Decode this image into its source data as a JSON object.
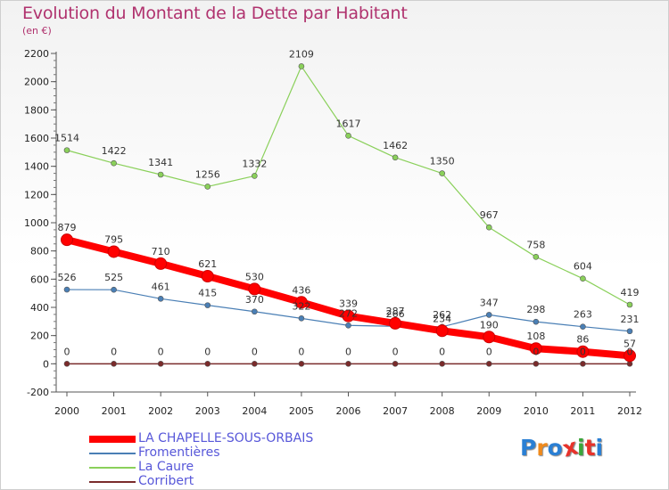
{
  "title": "Evolution du Montant de la Dette par Habitant",
  "subtitle": "(en €)",
  "logo": {
    "text": "Proxiti",
    "letter_colors": [
      "#2a7fd4",
      "#f08a1c",
      "#2a7fd4",
      "#e8322a",
      "#3aa63a",
      "#e8322a",
      "#2a7fd4"
    ]
  },
  "chart_data": {
    "type": "line",
    "x": [
      2000,
      2001,
      2002,
      2003,
      2004,
      2005,
      2006,
      2007,
      2008,
      2009,
      2010,
      2011,
      2012
    ],
    "ylim": [
      -200,
      2200
    ],
    "yticks": [
      -200,
      0,
      200,
      400,
      600,
      800,
      1000,
      1200,
      1400,
      1600,
      1800,
      2000,
      2200
    ],
    "grid": false,
    "legend_position": "bottom-left",
    "series": [
      {
        "name": "LA CHAPELLE-SOUS-ORBAIS",
        "color": "#ff0000",
        "values": [
          879,
          795,
          710,
          621,
          530,
          436,
          339,
          287,
          234,
          190,
          108,
          86,
          57
        ]
      },
      {
        "name": "Fromentières",
        "color": "#4a7fb5",
        "values": [
          526,
          525,
          461,
          415,
          370,
          322,
          272,
          266,
          262,
          347,
          298,
          263,
          231
        ]
      },
      {
        "name": "La Caure",
        "color": "#8ad05a",
        "values": [
          1514,
          1422,
          1341,
          1256,
          1332,
          2109,
          1617,
          1462,
          1350,
          967,
          758,
          604,
          419
        ]
      },
      {
        "name": "Corribert",
        "color": "#7a2b2b",
        "values": [
          0,
          0,
          0,
          0,
          0,
          0,
          0,
          0,
          0,
          0,
          0,
          0,
          0
        ]
      }
    ]
  }
}
